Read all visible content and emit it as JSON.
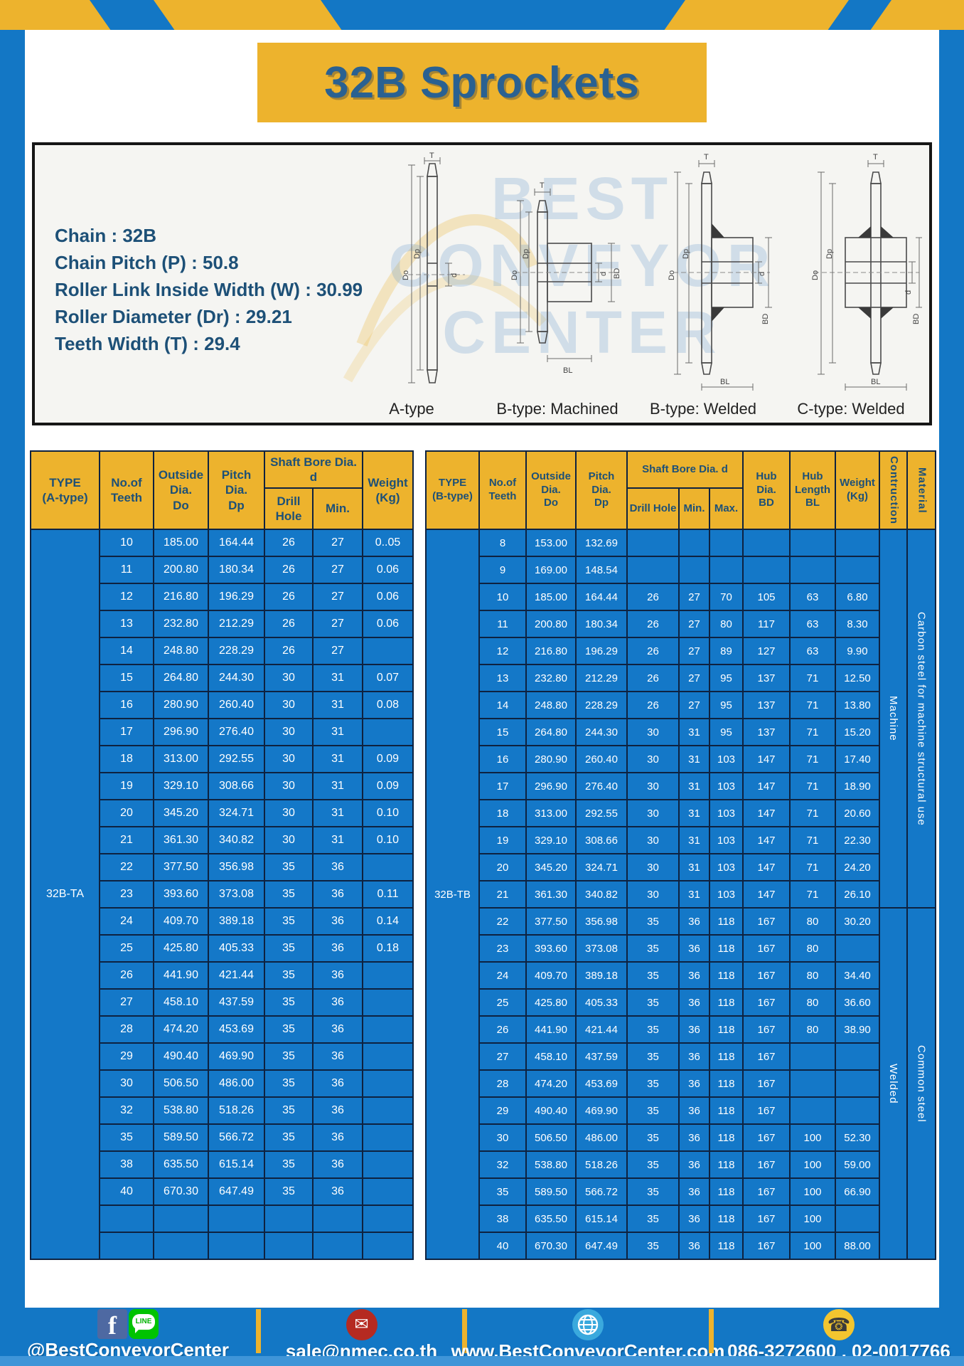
{
  "page": {
    "title": "32B Sprockets"
  },
  "specs": {
    "lines": [
      "Chain  : 32B",
      "Chain Pitch (P)  :  50.8",
      "Roller Link Inside Width (W)  :  30.99",
      "Roller Diameter (Dr)  : 29.21",
      "Teeth Width (T)  :  29.4"
    ]
  },
  "diagrams": {
    "captions": [
      "A-type",
      "B-type: Machined",
      "B-type: Welded",
      "C-type: Welded"
    ],
    "dims": {
      "T": "T",
      "Do": "Do",
      "Dp": "Dp",
      "d": "d",
      "BD": "BD",
      "BL": "BL"
    },
    "watermark": {
      "line1": "BEST",
      "line2": "CONVEYOR",
      "line3": "CENTER"
    }
  },
  "table_a": {
    "header": {
      "type": "TYPE\n(A-type)",
      "teeth": "No.of\nTeeth",
      "outside": "Outside\nDia.\nDo",
      "pitch": "Pitch Dia.\nDp",
      "shaft": "Shaft Bore Dia. d",
      "drill": "Drill Hole",
      "min": "Min.",
      "weight": "Weight\n(Kg)"
    },
    "type_value": "32B-TA",
    "rows": [
      [
        "10",
        "185.00",
        "164.44",
        "26",
        "27",
        "0..05"
      ],
      [
        "11",
        "200.80",
        "180.34",
        "26",
        "27",
        "0.06"
      ],
      [
        "12",
        "216.80",
        "196.29",
        "26",
        "27",
        "0.06"
      ],
      [
        "13",
        "232.80",
        "212.29",
        "26",
        "27",
        "0.06"
      ],
      [
        "14",
        "248.80",
        "228.29",
        "26",
        "27",
        ""
      ],
      [
        "15",
        "264.80",
        "244.30",
        "30",
        "31",
        "0.07"
      ],
      [
        "16",
        "280.90",
        "260.40",
        "30",
        "31",
        "0.08"
      ],
      [
        "17",
        "296.90",
        "276.40",
        "30",
        "31",
        ""
      ],
      [
        "18",
        "313.00",
        "292.55",
        "30",
        "31",
        "0.09"
      ],
      [
        "19",
        "329.10",
        "308.66",
        "30",
        "31",
        "0.09"
      ],
      [
        "20",
        "345.20",
        "324.71",
        "30",
        "31",
        "0.10"
      ],
      [
        "21",
        "361.30",
        "340.82",
        "30",
        "31",
        "0.10"
      ],
      [
        "22",
        "377.50",
        "356.98",
        "35",
        "36",
        ""
      ],
      [
        "23",
        "393.60",
        "373.08",
        "35",
        "36",
        "0.11"
      ],
      [
        "24",
        "409.70",
        "389.18",
        "35",
        "36",
        "0.14"
      ],
      [
        "25",
        "425.80",
        "405.33",
        "35",
        "36",
        "0.18"
      ],
      [
        "26",
        "441.90",
        "421.44",
        "35",
        "36",
        ""
      ],
      [
        "27",
        "458.10",
        "437.59",
        "35",
        "36",
        ""
      ],
      [
        "28",
        "474.20",
        "453.69",
        "35",
        "36",
        ""
      ],
      [
        "29",
        "490.40",
        "469.90",
        "35",
        "36",
        ""
      ],
      [
        "30",
        "506.50",
        "486.00",
        "35",
        "36",
        ""
      ],
      [
        "32",
        "538.80",
        "518.26",
        "35",
        "36",
        ""
      ],
      [
        "35",
        "589.50",
        "566.72",
        "35",
        "36",
        ""
      ],
      [
        "38",
        "635.50",
        "615.14",
        "35",
        "36",
        ""
      ],
      [
        "40",
        "670.30",
        "647.49",
        "35",
        "36",
        ""
      ],
      [
        "",
        "",
        "",
        "",
        "",
        ""
      ],
      [
        "",
        "",
        "",
        "",
        "",
        ""
      ]
    ]
  },
  "table_b": {
    "header": {
      "type": "TYPE\n(B-type)",
      "teeth": "No.of\nTeeth",
      "outside": "Outside\nDia.\nDo",
      "pitch": "Pitch Dia.\nDp",
      "shaft": "Shaft Bore Dia. d",
      "drill": "Drill Hole",
      "min": "Min.",
      "max": "Max.",
      "hub_dia": "Hub Dia.\nBD",
      "hub_len": "Hub\nLength\nBL",
      "weight": "Weight\n(Kg)",
      "construction": "Contruction",
      "material": "Material"
    },
    "type_value": "32B-TB",
    "rows": [
      [
        "8",
        "153.00",
        "132.69",
        "",
        "",
        "",
        "",
        "",
        ""
      ],
      [
        "9",
        "169.00",
        "148.54",
        "",
        "",
        "",
        "",
        "",
        ""
      ],
      [
        "10",
        "185.00",
        "164.44",
        "26",
        "27",
        "70",
        "105",
        "63",
        "6.80"
      ],
      [
        "11",
        "200.80",
        "180.34",
        "26",
        "27",
        "80",
        "117",
        "63",
        "8.30"
      ],
      [
        "12",
        "216.80",
        "196.29",
        "26",
        "27",
        "89",
        "127",
        "63",
        "9.90"
      ],
      [
        "13",
        "232.80",
        "212.29",
        "26",
        "27",
        "95",
        "137",
        "71",
        "12.50"
      ],
      [
        "14",
        "248.80",
        "228.29",
        "26",
        "27",
        "95",
        "137",
        "71",
        "13.80"
      ],
      [
        "15",
        "264.80",
        "244.30",
        "30",
        "31",
        "95",
        "137",
        "71",
        "15.20"
      ],
      [
        "16",
        "280.90",
        "260.40",
        "30",
        "31",
        "103",
        "147",
        "71",
        "17.40"
      ],
      [
        "17",
        "296.90",
        "276.40",
        "30",
        "31",
        "103",
        "147",
        "71",
        "18.90"
      ],
      [
        "18",
        "313.00",
        "292.55",
        "30",
        "31",
        "103",
        "147",
        "71",
        "20.60"
      ],
      [
        "19",
        "329.10",
        "308.66",
        "30",
        "31",
        "103",
        "147",
        "71",
        "22.30"
      ],
      [
        "20",
        "345.20",
        "324.71",
        "30",
        "31",
        "103",
        "147",
        "71",
        "24.20"
      ],
      [
        "21",
        "361.30",
        "340.82",
        "30",
        "31",
        "103",
        "147",
        "71",
        "26.10"
      ],
      [
        "22",
        "377.50",
        "356.98",
        "35",
        "36",
        "118",
        "167",
        "80",
        "30.20"
      ],
      [
        "23",
        "393.60",
        "373.08",
        "35",
        "36",
        "118",
        "167",
        "80",
        ""
      ],
      [
        "24",
        "409.70",
        "389.18",
        "35",
        "36",
        "118",
        "167",
        "80",
        "34.40"
      ],
      [
        "25",
        "425.80",
        "405.33",
        "35",
        "36",
        "118",
        "167",
        "80",
        "36.60"
      ],
      [
        "26",
        "441.90",
        "421.44",
        "35",
        "36",
        "118",
        "167",
        "80",
        "38.90"
      ],
      [
        "27",
        "458.10",
        "437.59",
        "35",
        "36",
        "118",
        "167",
        "",
        ""
      ],
      [
        "28",
        "474.20",
        "453.69",
        "35",
        "36",
        "118",
        "167",
        "",
        ""
      ],
      [
        "29",
        "490.40",
        "469.90",
        "35",
        "36",
        "118",
        "167",
        "",
        ""
      ],
      [
        "30",
        "506.50",
        "486.00",
        "35",
        "36",
        "118",
        "167",
        "100",
        "52.30"
      ],
      [
        "32",
        "538.80",
        "518.26",
        "35",
        "36",
        "118",
        "167",
        "100",
        "59.00"
      ],
      [
        "35",
        "589.50",
        "566.72",
        "35",
        "36",
        "118",
        "167",
        "100",
        "66.90"
      ],
      [
        "38",
        "635.50",
        "615.14",
        "35",
        "36",
        "118",
        "167",
        "100",
        ""
      ],
      [
        "40",
        "670.30",
        "647.49",
        "35",
        "36",
        "118",
        "167",
        "100",
        "88.00"
      ]
    ],
    "construction_groups": [
      {
        "label": "Machine",
        "span": 14
      },
      {
        "label": "Welded",
        "span": 13
      }
    ],
    "material_groups": [
      {
        "label": "Carbon steel for machine structural use",
        "span": 14
      },
      {
        "label": "Common steel",
        "span": 13
      }
    ]
  },
  "footer": {
    "line_label": "LINE",
    "items": [
      {
        "text": "@BestConveyorCenter"
      },
      {
        "text": "sale@nmec.co.th"
      },
      {
        "text": "www.BestConveyorCenter.com"
      },
      {
        "text": "086-3272600 , 02-0017766"
      }
    ]
  },
  "colors": {
    "page_blue": "#1377c5",
    "accent_yellow": "#edb32d",
    "cell_blue": "#1478c8",
    "grid_navy": "#0e2240",
    "heading_navy": "#1d5077",
    "facebook_blue": "#4e69a2",
    "line_green": "#00c300",
    "mail_red": "#b52a21",
    "globe_blue": "#3aa9dd",
    "phone_yellow": "#f3c52f"
  }
}
